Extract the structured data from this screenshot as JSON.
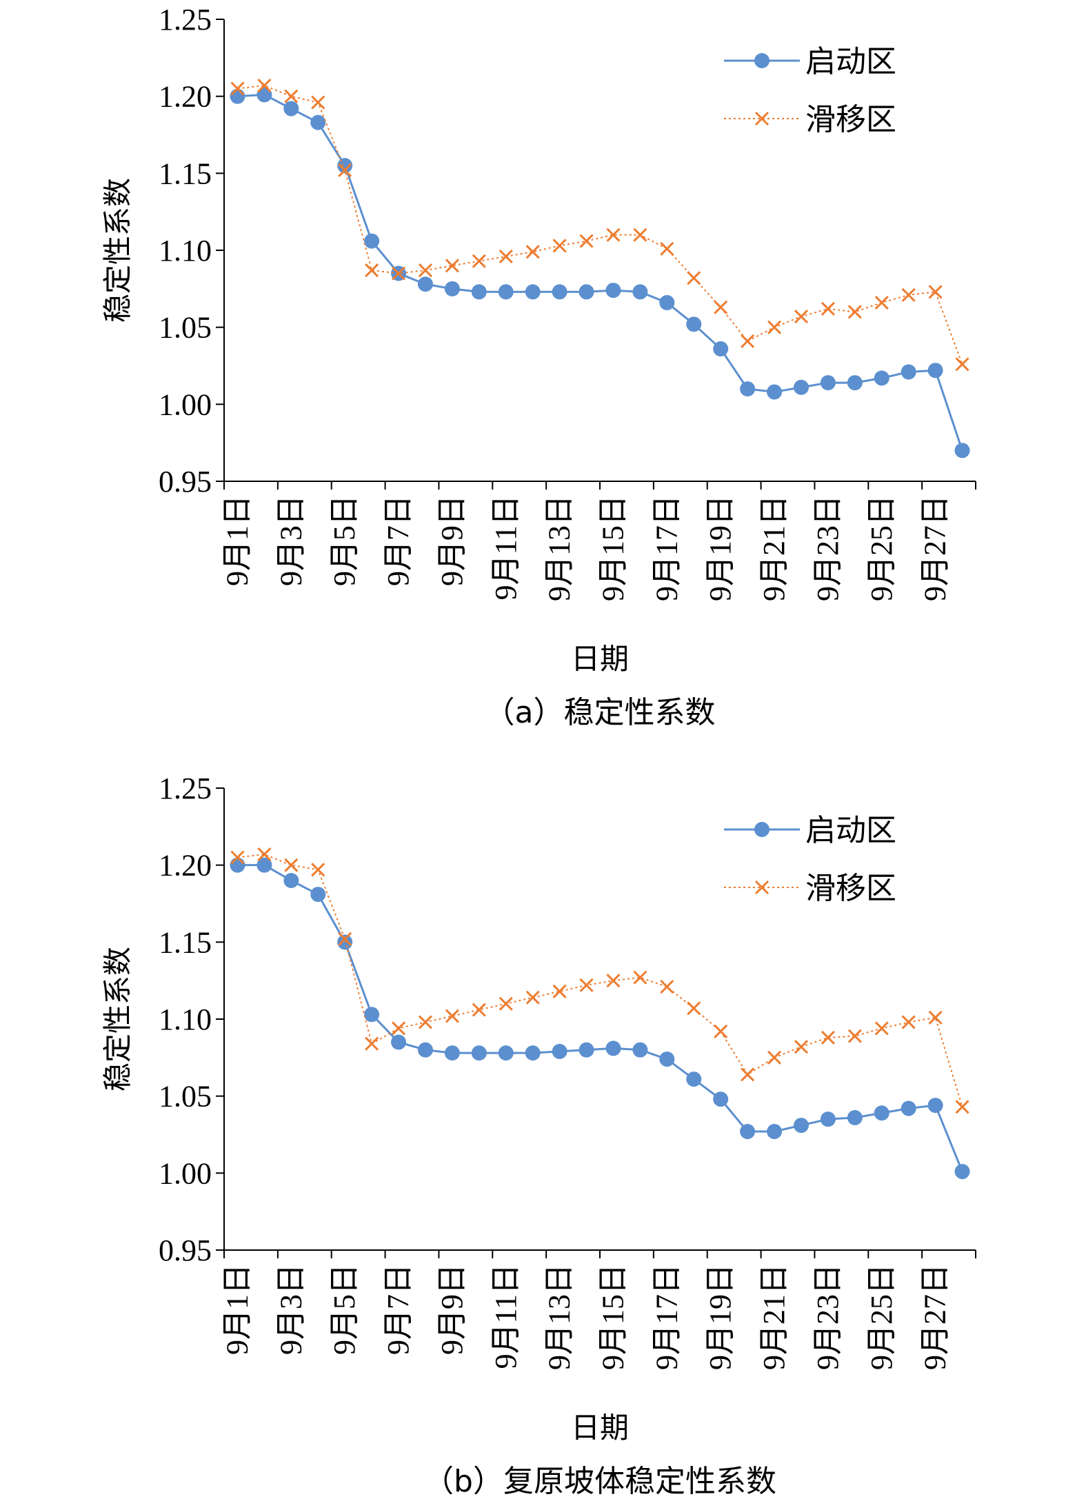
{
  "chart_data": [
    {
      "type": "line",
      "panel": "a",
      "caption": "（a）稳定性系数",
      "ylabel": "稳定性系数",
      "xlabel": "日期",
      "ylim": [
        0.95,
        1.25
      ],
      "yticks": [
        "0.95",
        "1.00",
        "1.05",
        "1.10",
        "1.15",
        "1.20",
        "1.25"
      ],
      "x_tick_labels": [
        "9月1日",
        "9月3日",
        "9月5日",
        "9月7日",
        "9月9日",
        "9月11日",
        "9月13日",
        "9月15日",
        "9月17日",
        "9月19日",
        "9月21日",
        "9月23日",
        "9月25日",
        "9月27日"
      ],
      "legend": "top-right",
      "series": [
        {
          "name": "启动区",
          "color": "#5b8fcf",
          "style": "solid-circle",
          "values": [
            1.2,
            1.201,
            1.192,
            1.183,
            1.155,
            1.106,
            1.085,
            1.078,
            1.075,
            1.073,
            1.073,
            1.073,
            1.073,
            1.073,
            1.074,
            1.073,
            1.066,
            1.052,
            1.036,
            1.01,
            1.008,
            1.011,
            1.014,
            1.014,
            1.017,
            1.021,
            1.022,
            0.97
          ]
        },
        {
          "name": "滑移区",
          "color": "#ed7d31",
          "style": "dotted-x",
          "values": [
            1.205,
            1.207,
            1.2,
            1.196,
            1.152,
            1.087,
            1.085,
            1.087,
            1.09,
            1.093,
            1.096,
            1.099,
            1.103,
            1.106,
            1.11,
            1.11,
            1.101,
            1.082,
            1.063,
            1.041,
            1.05,
            1.057,
            1.062,
            1.06,
            1.066,
            1.071,
            1.073,
            1.026
          ]
        }
      ]
    },
    {
      "type": "line",
      "panel": "b",
      "caption": "（b）复原坡体稳定性系数",
      "ylabel": "稳定性系数",
      "xlabel": "日期",
      "ylim": [
        0.95,
        1.25
      ],
      "yticks": [
        "0.95",
        "1.00",
        "1.05",
        "1.10",
        "1.15",
        "1.20",
        "1.25"
      ],
      "x_tick_labels": [
        "9月1日",
        "9月3日",
        "9月5日",
        "9月7日",
        "9月9日",
        "9月11日",
        "9月13日",
        "9月15日",
        "9月17日",
        "9月19日",
        "9月21日",
        "9月23日",
        "9月25日",
        "9月27日"
      ],
      "legend": "top-right",
      "series": [
        {
          "name": "启动区",
          "color": "#5b8fcf",
          "style": "solid-circle",
          "values": [
            1.2,
            1.2,
            1.19,
            1.181,
            1.15,
            1.103,
            1.085,
            1.08,
            1.078,
            1.078,
            1.078,
            1.078,
            1.079,
            1.08,
            1.081,
            1.08,
            1.074,
            1.061,
            1.048,
            1.027,
            1.027,
            1.031,
            1.035,
            1.036,
            1.039,
            1.042,
            1.044,
            1.001
          ]
        },
        {
          "name": "滑移区",
          "color": "#ed7d31",
          "style": "dotted-x",
          "values": [
            1.205,
            1.207,
            1.2,
            1.197,
            1.152,
            1.084,
            1.094,
            1.098,
            1.102,
            1.106,
            1.11,
            1.114,
            1.118,
            1.122,
            1.125,
            1.127,
            1.121,
            1.107,
            1.092,
            1.064,
            1.075,
            1.082,
            1.088,
            1.089,
            1.094,
            1.098,
            1.101,
            1.043
          ]
        }
      ]
    }
  ]
}
